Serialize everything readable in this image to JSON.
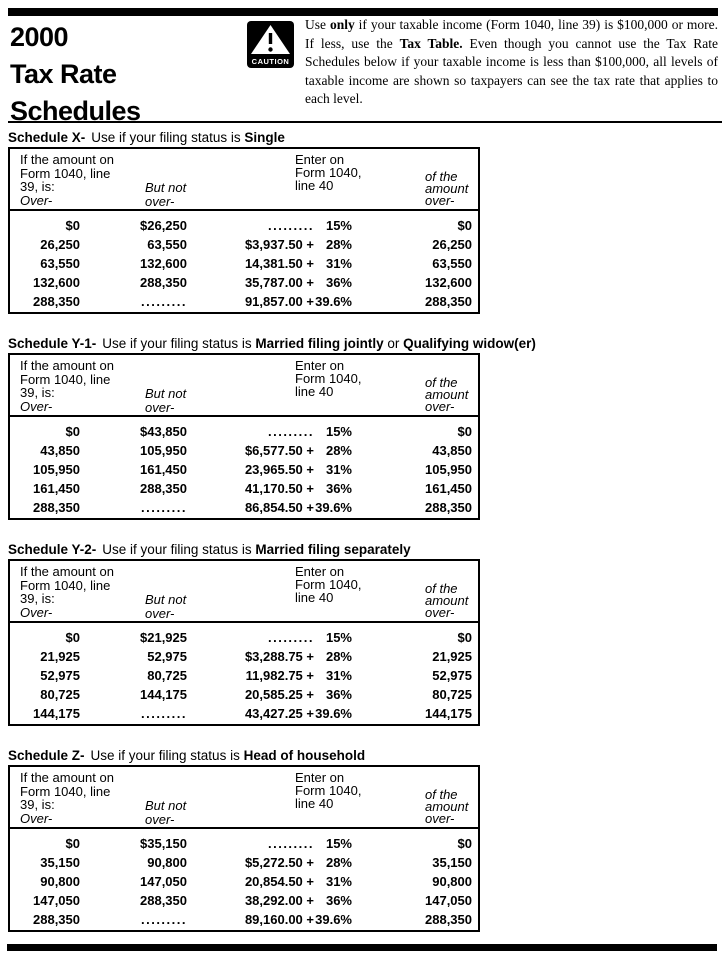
{
  "page": {
    "title_lines": "2000\nTax Rate\nSchedules",
    "caution_label": "CAUTION",
    "intro": {
      "pre": "Use ",
      "bold1": "only",
      "mid1": " if your taxable income (Form 1040, line 39) is $100,000 or more. If less, use the ",
      "bold2": "Tax Table.",
      "mid2": " Even though you cannot use the Tax Rate Schedules below if your taxable income is less than $100,000, all levels of taxable income are shown so taxpayers can see the tax rate that applies to each level."
    }
  },
  "table_head": {
    "amount_label": "If the amount on\nForm 1040, line\n39, is:",
    "over_label": "Over-",
    "but_not_over_label": "But not\nover-",
    "enter_label": "Enter on\nForm 1040,\nline 40",
    "of_amount_label": "of the\namount\nover-"
  },
  "schedules": [
    {
      "id": "X",
      "caption": [
        {
          "t": "Schedule X-",
          "b": true
        },
        {
          "t": "Use if your filing status is ",
          "b": false
        },
        {
          "t": "Single",
          "b": true
        }
      ],
      "rows": [
        {
          "over": "$0",
          "but_not_over": "$26,250",
          "tax": ".........",
          "rate": "15%",
          "of_over": "$0"
        },
        {
          "over": "26,250",
          "but_not_over": "63,550",
          "tax": "$3,937.50 +",
          "rate": "28%",
          "of_over": "26,250"
        },
        {
          "over": "63,550",
          "but_not_over": "132,600",
          "tax": "14,381.50 +",
          "rate": "31%",
          "of_over": "63,550"
        },
        {
          "over": "132,600",
          "but_not_over": "288,350",
          "tax": "35,787.00 +",
          "rate": "36%",
          "of_over": "132,600"
        },
        {
          "over": "288,350",
          "but_not_over": ".........",
          "tax": "91,857.00 +",
          "rate": "39.6%",
          "of_over": "288,350"
        }
      ]
    },
    {
      "id": "Y-1",
      "caption": [
        {
          "t": "Schedule Y-1-",
          "b": true
        },
        {
          "t": "Use if your filing status is ",
          "b": false
        },
        {
          "t": "Married filing jointly",
          "b": true
        },
        {
          "t": " or ",
          "b": false
        },
        {
          "t": "Qualifying widow(er)",
          "b": true
        }
      ],
      "rows": [
        {
          "over": "$0",
          "but_not_over": "$43,850",
          "tax": ".........",
          "rate": "15%",
          "of_over": "$0"
        },
        {
          "over": "43,850",
          "but_not_over": "105,950",
          "tax": "$6,577.50 +",
          "rate": "28%",
          "of_over": "43,850"
        },
        {
          "over": "105,950",
          "but_not_over": "161,450",
          "tax": "23,965.50 +",
          "rate": "31%",
          "of_over": "105,950"
        },
        {
          "over": "161,450",
          "but_not_over": "288,350",
          "tax": "41,170.50 +",
          "rate": "36%",
          "of_over": "161,450"
        },
        {
          "over": "288,350",
          "but_not_over": ".........",
          "tax": "86,854.50 +",
          "rate": "39.6%",
          "of_over": "288,350"
        }
      ]
    },
    {
      "id": "Y-2",
      "caption": [
        {
          "t": "Schedule Y-2-",
          "b": true
        },
        {
          "t": "Use if your filing status is ",
          "b": false
        },
        {
          "t": "Married filing separately",
          "b": true
        }
      ],
      "rows": [
        {
          "over": "$0",
          "but_not_over": "$21,925",
          "tax": ".........",
          "rate": "15%",
          "of_over": "$0"
        },
        {
          "over": "21,925",
          "but_not_over": "52,975",
          "tax": "$3,288.75 +",
          "rate": "28%",
          "of_over": "21,925"
        },
        {
          "over": "52,975",
          "but_not_over": "80,725",
          "tax": "11,982.75 +",
          "rate": "31%",
          "of_over": "52,975"
        },
        {
          "over": "80,725",
          "but_not_over": "144,175",
          "tax": "20,585.25 +",
          "rate": "36%",
          "of_over": "80,725"
        },
        {
          "over": "144,175",
          "but_not_over": ".........",
          "tax": "43,427.25 +",
          "rate": "39.6%",
          "of_over": "144,175"
        }
      ]
    },
    {
      "id": "Z",
      "caption": [
        {
          "t": "Schedule Z-",
          "b": true
        },
        {
          "t": "Use if your filing status is ",
          "b": false
        },
        {
          "t": "Head of household",
          "b": true
        }
      ],
      "rows": [
        {
          "over": "$0",
          "but_not_over": "$35,150",
          "tax": ".........",
          "rate": "15%",
          "of_over": "$0"
        },
        {
          "over": "35,150",
          "but_not_over": "90,800",
          "tax": "$5,272.50 +",
          "rate": "28%",
          "of_over": "35,150"
        },
        {
          "over": "90,800",
          "but_not_over": "147,050",
          "tax": "20,854.50 +",
          "rate": "31%",
          "of_over": "90,800"
        },
        {
          "over": "147,050",
          "but_not_over": "288,350",
          "tax": "38,292.00 +",
          "rate": "36%",
          "of_over": "147,050"
        },
        {
          "over": "288,350",
          "but_not_over": ".........",
          "tax": "89,160.00 +",
          "rate": "39.6%",
          "of_over": "288,350"
        }
      ]
    }
  ]
}
